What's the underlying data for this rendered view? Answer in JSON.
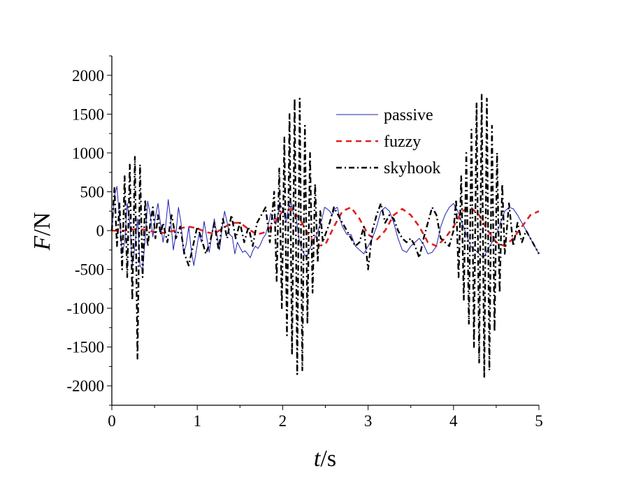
{
  "chart_data": {
    "type": "line",
    "xlabel": {
      "var": "t",
      "unit": "/s"
    },
    "ylabel": {
      "var": "F",
      "unit": "/N"
    },
    "xlim": [
      0,
      5
    ],
    "ylim": [
      -2250,
      2250
    ],
    "xticks": [
      "0",
      "1",
      "2",
      "3",
      "4",
      "5"
    ],
    "yticks": [
      "2000",
      "1500",
      "1000",
      "500",
      "0",
      "-500",
      "-1000",
      "-1500",
      "-2000"
    ],
    "grid": false,
    "legend_position": "top-right",
    "series": [
      {
        "name": "passive",
        "color": "#1f1fb4",
        "style": "solid",
        "x": [
          0.0,
          0.03,
          0.06,
          0.09,
          0.12,
          0.15,
          0.18,
          0.21,
          0.24,
          0.27,
          0.3,
          0.33,
          0.36,
          0.39,
          0.42,
          0.45,
          0.48,
          0.51,
          0.54,
          0.57,
          0.6,
          0.63,
          0.66,
          0.69,
          0.72,
          0.75,
          0.78,
          0.81,
          0.84,
          0.87,
          0.9,
          0.93,
          0.96,
          0.99,
          1.02,
          1.05,
          1.08,
          1.11,
          1.14,
          1.17,
          1.2,
          1.23,
          1.26,
          1.29,
          1.32,
          1.35,
          1.38,
          1.41,
          1.44,
          1.47,
          1.5,
          1.53,
          1.56,
          1.59,
          1.62,
          1.65,
          1.68,
          1.71,
          1.74,
          1.77,
          1.8,
          1.83,
          1.86,
          1.89,
          1.92,
          1.95,
          1.98,
          2.01,
          2.04,
          2.07,
          2.1,
          2.13,
          2.16,
          2.19,
          2.22,
          2.25,
          2.28,
          2.31,
          2.34,
          2.37,
          2.4,
          2.43,
          2.46,
          2.49,
          2.52,
          2.55,
          2.58,
          2.61,
          2.64,
          2.67,
          2.7,
          2.75,
          2.8,
          2.85,
          2.9,
          2.95,
          3.0,
          3.05,
          3.1,
          3.15,
          3.2,
          3.25,
          3.3,
          3.35,
          3.4,
          3.45,
          3.5,
          3.55,
          3.6,
          3.65,
          3.7,
          3.75,
          3.8,
          3.85,
          3.9,
          3.95,
          4.0,
          4.05,
          4.1,
          4.15,
          4.2,
          4.25,
          4.3,
          4.35,
          4.4,
          4.45,
          4.5,
          4.55,
          4.6,
          4.65,
          4.7,
          4.75,
          4.8,
          4.85,
          4.9,
          4.95,
          5.0
        ],
        "y": [
          0,
          450,
          570,
          150,
          -300,
          -150,
          350,
          100,
          -450,
          -200,
          150,
          -450,
          -500,
          -100,
          380,
          200,
          -80,
          180,
          350,
          80,
          -150,
          60,
          400,
          120,
          -250,
          -50,
          300,
          100,
          -300,
          -180,
          50,
          -250,
          -450,
          -250,
          -50,
          -150,
          120,
          -80,
          -280,
          -60,
          150,
          -50,
          -250,
          20,
          250,
          100,
          -50,
          -80,
          -300,
          -150,
          -220,
          -280,
          -260,
          -300,
          -350,
          -260,
          -200,
          -230,
          -180,
          -100,
          -50,
          60,
          220,
          150,
          80,
          240,
          320,
          250,
          100,
          300,
          350,
          200,
          150,
          -100,
          -230,
          -300,
          -350,
          -250,
          -180,
          -100,
          -50,
          50,
          150,
          300,
          280,
          250,
          200,
          280,
          300,
          150,
          50,
          -50,
          -50,
          -200,
          -250,
          -300,
          -200,
          -100,
          50,
          250,
          300,
          250,
          100,
          -100,
          -250,
          -280,
          -200,
          -150,
          -100,
          -180,
          -300,
          -280,
          -200,
          50,
          200,
          300,
          350,
          250,
          100,
          -50,
          -200,
          -250,
          -300,
          -350,
          -250,
          -150,
          -50,
          100,
          250,
          300,
          280,
          200,
          100,
          0,
          -100,
          -200,
          -300
        ]
      },
      {
        "name": "fuzzy",
        "color": "#e02020",
        "style": "dashed",
        "x": [
          0.0,
          0.1,
          0.2,
          0.3,
          0.4,
          0.5,
          0.6,
          0.7,
          0.8,
          0.9,
          1.0,
          1.1,
          1.2,
          1.3,
          1.4,
          1.5,
          1.6,
          1.7,
          1.8,
          1.9,
          2.0,
          2.1,
          2.2,
          2.3,
          2.4,
          2.5,
          2.6,
          2.7,
          2.8,
          2.9,
          3.0,
          3.1,
          3.2,
          3.3,
          3.4,
          3.5,
          3.6,
          3.7,
          3.8,
          3.9,
          4.0,
          4.1,
          4.2,
          4.3,
          4.4,
          4.5,
          4.6,
          4.7,
          4.8,
          4.9,
          5.0
        ],
        "y": [
          0,
          -5,
          10,
          20,
          10,
          -20,
          -30,
          -10,
          30,
          50,
          30,
          -20,
          -40,
          30,
          100,
          100,
          20,
          -50,
          -20,
          100,
          250,
          280,
          150,
          -50,
          -200,
          -180,
          50,
          250,
          300,
          150,
          -50,
          -120,
          0,
          200,
          280,
          200,
          50,
          -150,
          -200,
          -100,
          50,
          250,
          300,
          200,
          0,
          -150,
          -200,
          -100,
          50,
          200,
          250
        ]
      },
      {
        "name": "skyhook",
        "color": "#000000",
        "style": "dash-dot",
        "x": [
          0.0,
          0.03,
          0.06,
          0.09,
          0.12,
          0.15,
          0.18,
          0.21,
          0.24,
          0.27,
          0.3,
          0.33,
          0.36,
          0.39,
          0.42,
          0.45,
          0.48,
          0.51,
          0.54,
          0.57,
          0.6,
          0.65,
          0.7,
          0.75,
          0.8,
          0.85,
          0.9,
          0.95,
          1.0,
          1.05,
          1.1,
          1.15,
          1.2,
          1.25,
          1.3,
          1.35,
          1.4,
          1.45,
          1.5,
          1.55,
          1.6,
          1.65,
          1.7,
          1.75,
          1.8,
          1.85,
          1.9,
          1.93,
          1.96,
          1.99,
          2.02,
          2.05,
          2.08,
          2.11,
          2.14,
          2.17,
          2.2,
          2.23,
          2.26,
          2.29,
          2.32,
          2.35,
          2.38,
          2.41,
          2.44,
          2.47,
          2.5,
          2.55,
          2.6,
          2.65,
          2.7,
          2.75,
          2.8,
          2.85,
          2.9,
          2.95,
          3.0,
          3.05,
          3.1,
          3.15,
          3.2,
          3.25,
          3.3,
          3.35,
          3.4,
          3.45,
          3.5,
          3.55,
          3.6,
          3.65,
          3.7,
          3.75,
          3.8,
          3.85,
          3.9,
          3.95,
          4.0,
          4.03,
          4.06,
          4.09,
          4.12,
          4.15,
          4.18,
          4.21,
          4.24,
          4.27,
          4.3,
          4.33,
          4.36,
          4.39,
          4.42,
          4.45,
          4.48,
          4.51,
          4.54,
          4.57,
          4.6,
          4.65,
          4.7,
          4.75,
          4.8,
          4.85,
          4.9,
          4.95,
          5.0
        ],
        "y": [
          0,
          550,
          -200,
          350,
          -500,
          700,
          -600,
          850,
          -900,
          950,
          -1650,
          850,
          -600,
          400,
          -200,
          100,
          300,
          -100,
          200,
          -50,
          100,
          -150,
          200,
          -100,
          50,
          -300,
          -450,
          -200,
          50,
          -100,
          -300,
          -150,
          100,
          -250,
          150,
          -100,
          200,
          -100,
          100,
          -150,
          50,
          -200,
          100,
          200,
          300,
          -150,
          500,
          -650,
          800,
          -1000,
          1200,
          -1350,
          1500,
          -1600,
          1700,
          -1850,
          1700,
          -1800,
          1350,
          -1200,
          1000,
          -800,
          600,
          -400,
          250,
          -150,
          -50,
          100,
          300,
          200,
          100,
          0,
          -100,
          -200,
          -150,
          50,
          -500,
          0,
          200,
          350,
          100,
          200,
          150,
          0,
          -100,
          -150,
          -100,
          -200,
          -350,
          -100,
          100,
          300,
          200,
          -100,
          -150,
          -200,
          0,
          400,
          -600,
          700,
          -900,
          1000,
          -1200,
          1300,
          -1500,
          1650,
          -1700,
          1750,
          -1900,
          1700,
          -1800,
          1350,
          -1300,
          1000,
          -800,
          600,
          -300,
          350,
          -200,
          100,
          -150,
          0,
          -100,
          -200,
          -300
        ]
      }
    ]
  }
}
